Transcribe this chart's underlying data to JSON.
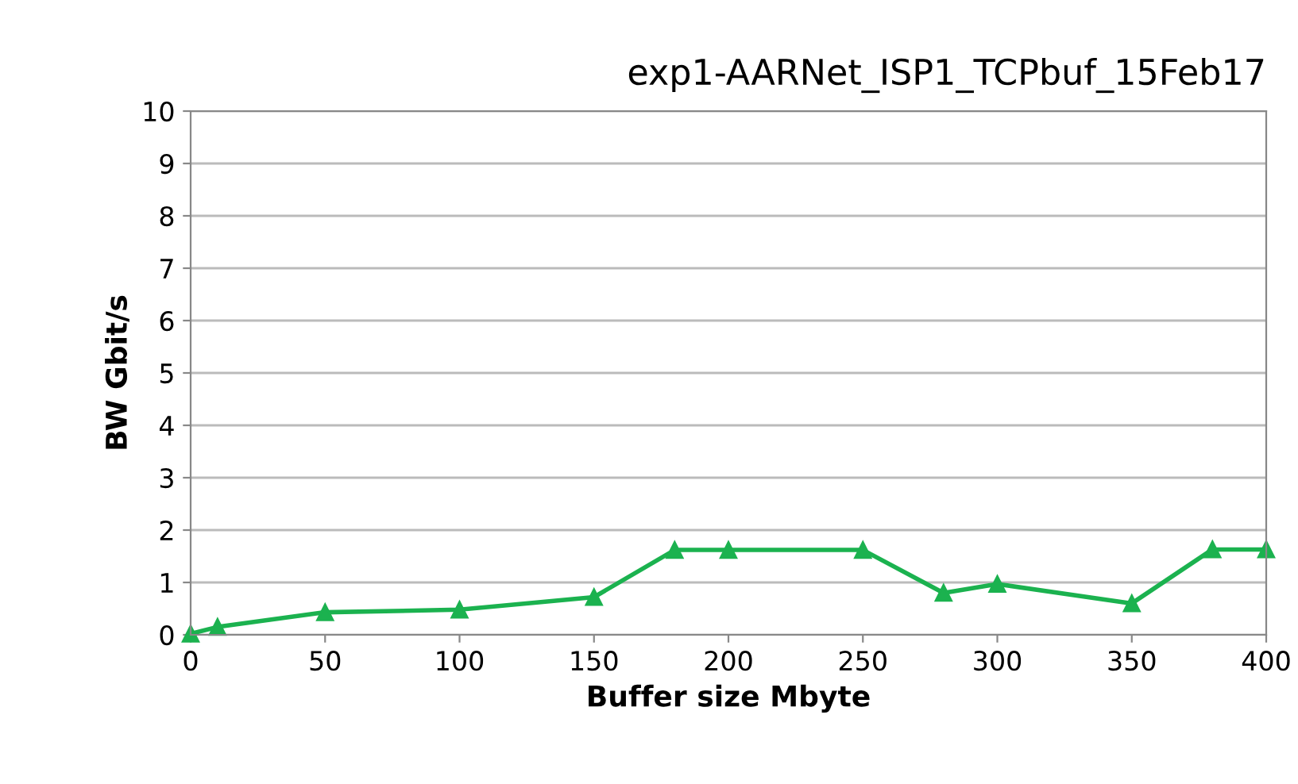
{
  "chart_data": {
    "type": "line",
    "title": "exp1-AARNet_ISP1_TCPbuf_15Feb17",
    "xlabel": "Buffer size Mbyte",
    "ylabel": "BW Gbit/s",
    "x": [
      0,
      10,
      50,
      100,
      150,
      180,
      200,
      250,
      280,
      300,
      350,
      380,
      400
    ],
    "series": [
      {
        "color": "#1bb24f",
        "values": [
          0.02,
          0.15,
          0.43,
          0.48,
          0.72,
          1.62,
          1.62,
          1.62,
          0.8,
          0.97,
          0.6,
          1.63,
          1.63
        ]
      }
    ],
    "xlim": [
      0,
      400
    ],
    "xticks": [
      0,
      50,
      100,
      150,
      200,
      250,
      300,
      350,
      400
    ],
    "ylim": [
      0,
      10
    ],
    "yticks": [
      0,
      1,
      2,
      3,
      4,
      5,
      6,
      7,
      8,
      9,
      10
    ],
    "grid": "y",
    "marker": "triangle",
    "line_style": "solid",
    "legend": false
  }
}
